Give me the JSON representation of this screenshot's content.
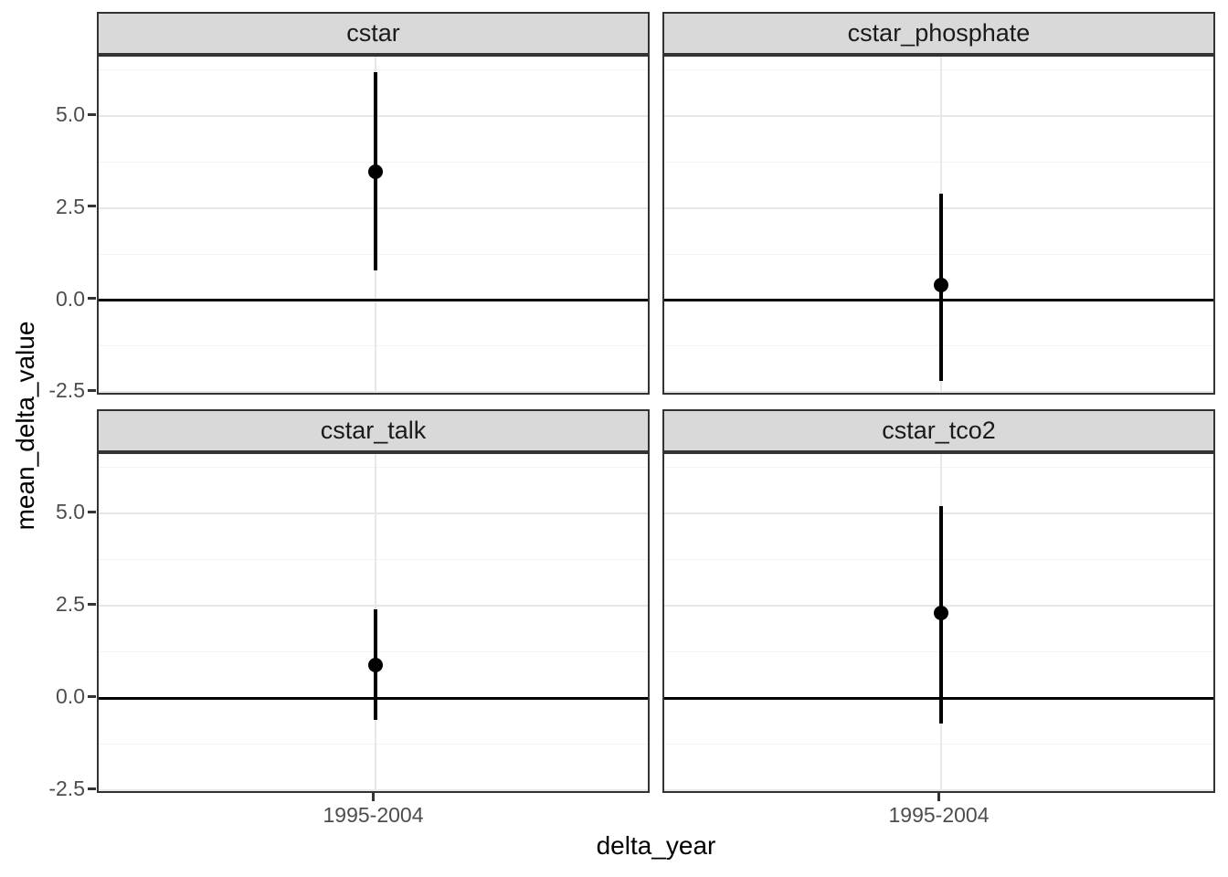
{
  "figure": {
    "kind": "ggplot-style faceted pointrange plot",
    "background": "#ffffff"
  },
  "chart_data": {
    "type": "scatter",
    "mark": "pointrange",
    "title": "",
    "xlabel": "delta_year",
    "ylabel": "mean_delta_value",
    "x_categories": [
      "1995-2004"
    ],
    "facet_labels": [
      "cstar",
      "cstar_phosphate",
      "cstar_talk",
      "cstar_tco2"
    ],
    "facets": [
      {
        "label": "cstar",
        "x": "1995-2004",
        "estimate": 3.5,
        "lower": 0.8,
        "upper": 6.2
      },
      {
        "label": "cstar_phosphate",
        "x": "1995-2004",
        "estimate": 0.4,
        "lower": -2.2,
        "upper": 2.9
      },
      {
        "label": "cstar_talk",
        "x": "1995-2004",
        "estimate": 0.9,
        "lower": -0.6,
        "upper": 2.4
      },
      {
        "label": "cstar_tco2",
        "x": "1995-2004",
        "estimate": 2.3,
        "lower": -0.7,
        "upper": 5.2
      }
    ],
    "y_axis": {
      "limits": [
        -2.62,
        6.62
      ],
      "major_ticks": [
        5.0,
        2.5,
        0.0,
        -2.5
      ],
      "tick_labels": [
        "5.0",
        "2.5",
        "0.0",
        "-2.5"
      ],
      "minor_ticks": [
        6.25,
        3.75,
        1.25,
        -1.25
      ]
    },
    "reference_line_y": 0,
    "grid": true,
    "legend": "none"
  },
  "style": {
    "strip_fill": "#d9d9d9",
    "panel_border_color": "#333333",
    "grid_major_color": "#e7e7e7",
    "grid_minor_color": "#f3f3f3",
    "tick_label_color": "#4d4d4d",
    "axis_title_color": "#000000",
    "strip_text_color": "#1a1a1a",
    "point_color": "#000000",
    "reference_line_color": "#000000",
    "background": "#ffffff"
  }
}
